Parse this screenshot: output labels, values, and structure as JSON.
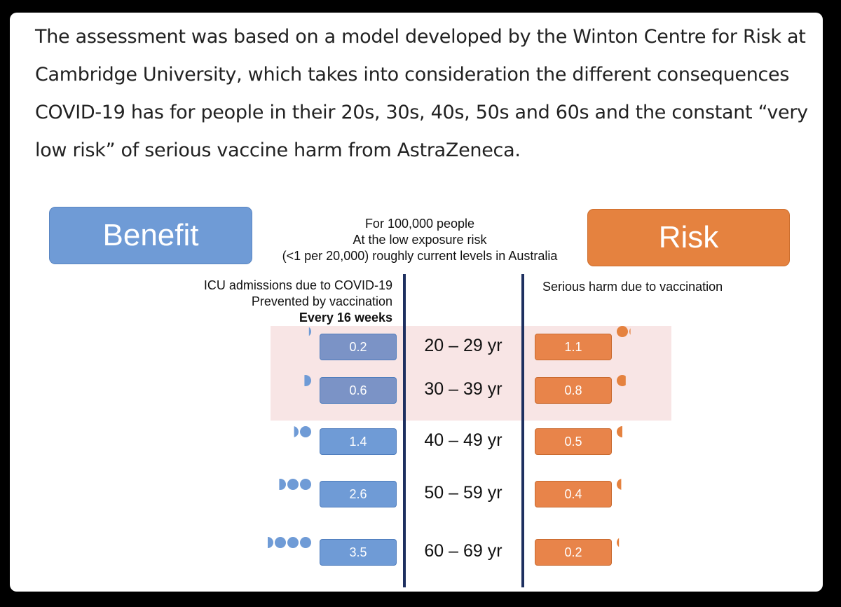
{
  "article": {
    "paragraph": "The assessment was based on a model developed by the Winton Centre for Risk at Cambridge University, which takes into consideration the different consequences COVID-19 has for people in their 20s, 30s, 40s, 50s and 60s and the constant “very low risk” of serious vaccine harm from AstraZeneca."
  },
  "figure": {
    "benefit_label": "Benefit",
    "risk_label": "Risk",
    "header_line1": "For 100,000 people",
    "header_line2": "At the low exposure risk",
    "header_line3": "(<1 per 20,000) roughly current levels in Australia",
    "left_head_line1": "ICU admissions due to COVID-19",
    "left_head_line2": "Prevented by vaccination",
    "left_head_line3": "Every 16 weeks",
    "right_head": "Serious harm due to vaccination"
  },
  "colors": {
    "benefit": "#6f9bd6",
    "risk": "#e5823f",
    "divider": "#1e3060",
    "highlight": "#f7e1e1"
  },
  "chart_data": {
    "type": "table",
    "title": "",
    "categories": [
      "20 – 29 yr",
      "30 – 39 yr",
      "40 – 49 yr",
      "50 – 59 yr",
      "60 – 69 yr"
    ],
    "series": [
      {
        "name": "ICU admissions due to COVID-19 Prevented by vaccination",
        "values": [
          0.2,
          0.6,
          1.4,
          2.6,
          3.5
        ]
      },
      {
        "name": "Serious harm due to vaccination",
        "values": [
          1.1,
          0.8,
          0.5,
          0.4,
          0.2
        ]
      }
    ],
    "highlighted_categories": [
      "20 – 29 yr",
      "30 – 39 yr"
    ]
  }
}
